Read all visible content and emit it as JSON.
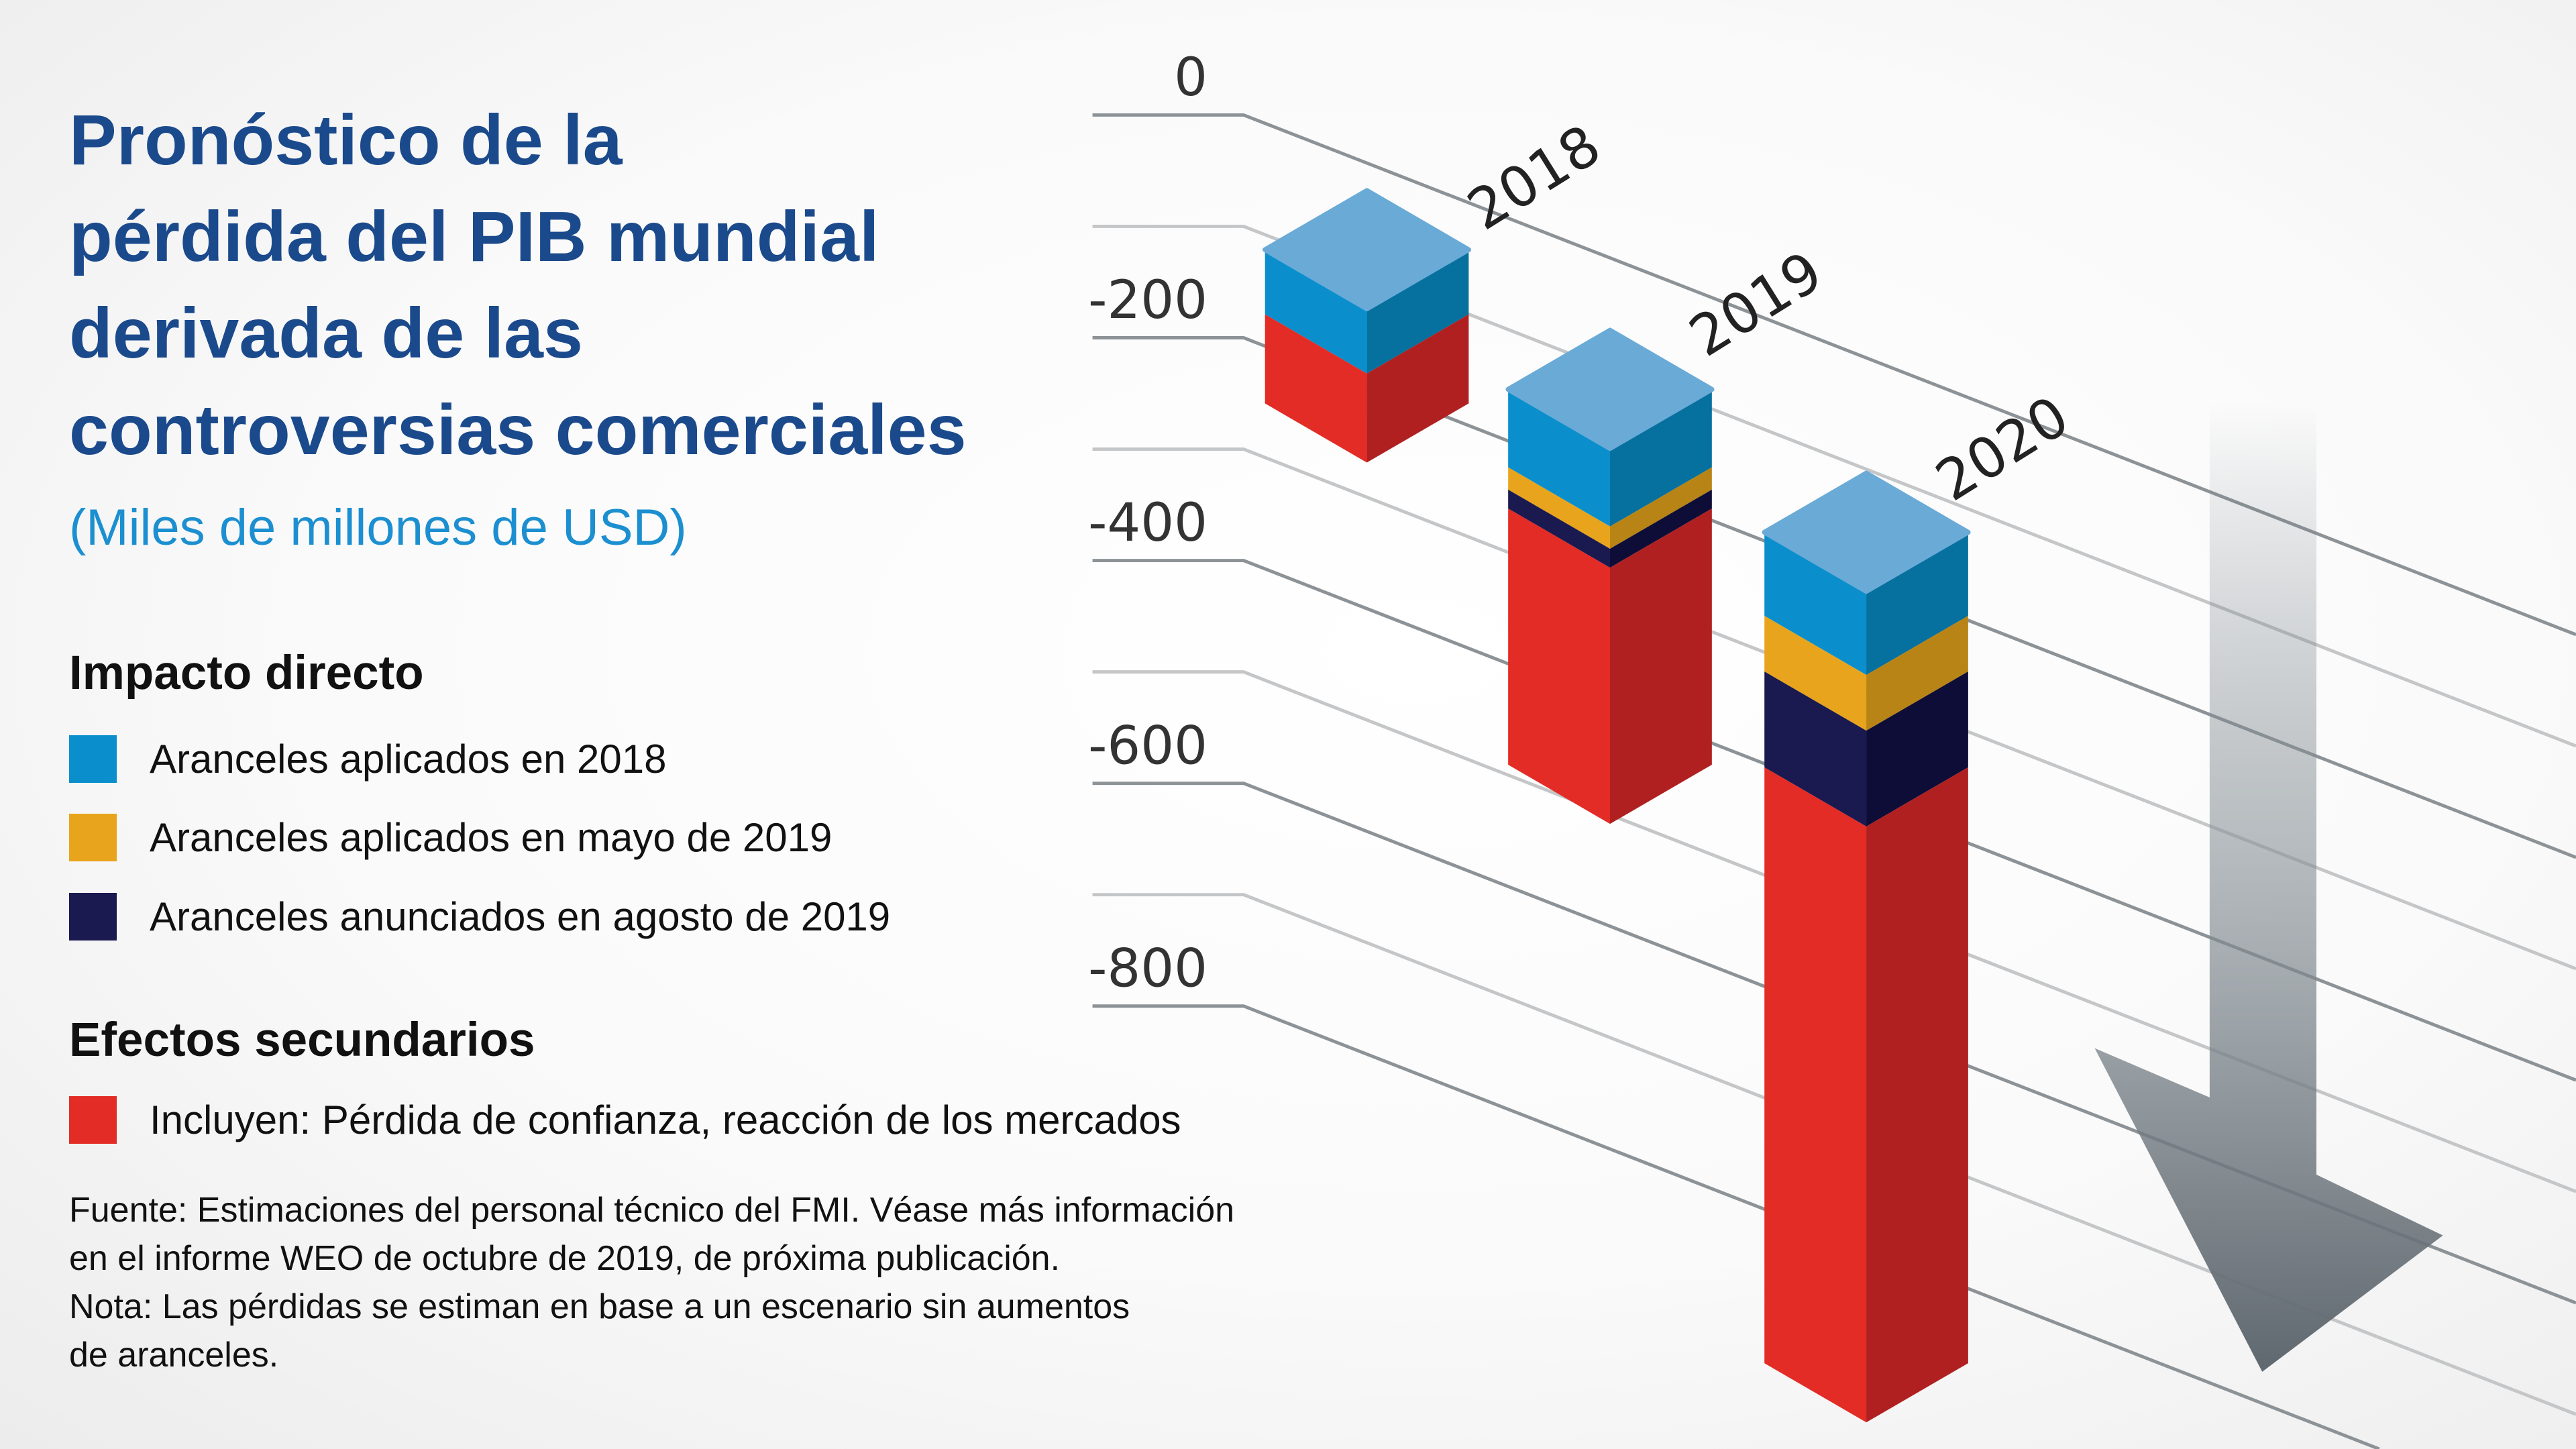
{
  "title_lines": [
    "Pronóstico de la",
    "pérdida del PIB mundial",
    "derivada de las",
    "controversias comerciales"
  ],
  "subtitle": "(Miles de millones de USD)",
  "legend": {
    "direct_heading": "Impacto directo",
    "direct_items": [
      {
        "label": "Aranceles aplicados en 2018",
        "color": "#0a8fcc"
      },
      {
        "label": "Aranceles aplicados en mayo de 2019",
        "color": "#e8a41c"
      },
      {
        "label": "Aranceles anunciados en agosto de 2019",
        "color": "#1a1a50"
      }
    ],
    "secondary_heading": "Efectos secundarios",
    "secondary_items": [
      {
        "label": "Incluyen: Pérdida de confianza, reacción de los mercados",
        "color": "#e22c25"
      }
    ]
  },
  "notes": [
    "Fuente: Estimaciones del personal técnico del FMI. Véase más información",
    "en el informe WEO de octubre de 2019, de próxima publicación.",
    "Nota: Las pérdidas se estiman en base a un escenario sin aumentos",
    "de aranceles."
  ],
  "chart_data": {
    "type": "bar",
    "stacked": true,
    "style": "3d",
    "categories": [
      "2018",
      "2019",
      "2020"
    ],
    "series": [
      {
        "name": "Aranceles aplicados en 2018",
        "values": [
          -58,
          -70,
          -75
        ],
        "color": "#0a8fcc"
      },
      {
        "name": "Aranceles aplicados en mayo de 2019",
        "values": [
          0,
          -20,
          -50
        ],
        "color": "#e8a41c"
      },
      {
        "name": "Aranceles anunciados en agosto de 2019",
        "values": [
          0,
          -17,
          -86
        ],
        "color": "#1a1a50"
      },
      {
        "name": "Incluyen: Pérdida de confianza, reacción de los mercados",
        "values": [
          -80,
          -230,
          -535
        ],
        "color": "#e22c25"
      }
    ],
    "y_ticks": [
      "0",
      "-200",
      "-400",
      "-600",
      "-800"
    ],
    "ylim": [
      -800,
      0
    ],
    "grid": true,
    "decoration": "downward-arrow"
  }
}
